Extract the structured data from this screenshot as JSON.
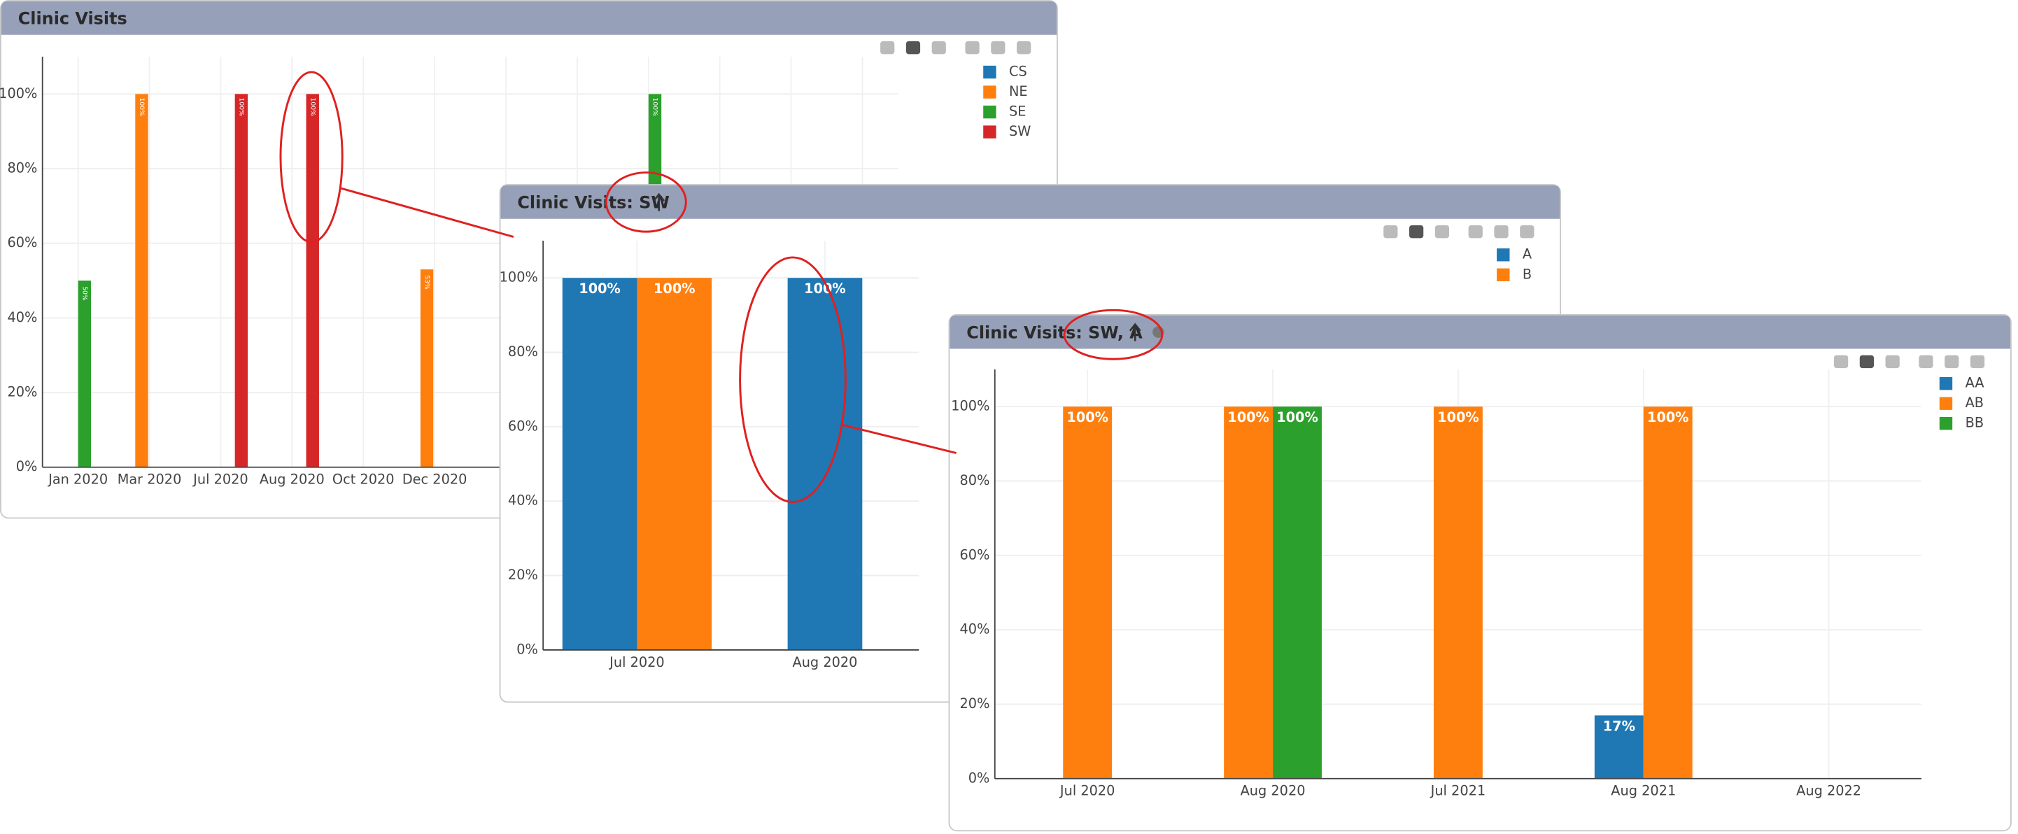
{
  "chart_data": [
    {
      "type": "bar",
      "title": "Clinic Visits",
      "categories": [
        "Jan 2020",
        "Mar 2020",
        "Jul 2020",
        "Aug 2020",
        "Oct 2020",
        "Dec 2020",
        null,
        null,
        null,
        null,
        null,
        null
      ],
      "series": [
        {
          "name": "CS",
          "color": "#1f77b4",
          "values": [
            null,
            null,
            null,
            null,
            null,
            null,
            null,
            null,
            null,
            null,
            null,
            null
          ],
          "value_labels": [
            null,
            null,
            null,
            null,
            null,
            null,
            null,
            null,
            null,
            null,
            null,
            null
          ]
        },
        {
          "name": "NE",
          "color": "#ff7f0e",
          "values": [
            null,
            100,
            null,
            null,
            null,
            53,
            null,
            null,
            null,
            null,
            null,
            null
          ],
          "value_labels": [
            null,
            "100%",
            null,
            null,
            null,
            "53%",
            null,
            null,
            null,
            null,
            null,
            null
          ]
        },
        {
          "name": "SE",
          "color": "#2ca02c",
          "values": [
            50,
            null,
            null,
            null,
            null,
            null,
            null,
            null,
            100,
            null,
            null,
            null
          ],
          "value_labels": [
            "50%",
            null,
            null,
            null,
            null,
            null,
            null,
            null,
            "100%",
            null,
            null,
            null
          ]
        },
        {
          "name": "SW",
          "color": "#d62728",
          "values": [
            null,
            null,
            100,
            100,
            null,
            null,
            null,
            null,
            null,
            null,
            null,
            null
          ],
          "value_labels": [
            null,
            null,
            "100%",
            "100%",
            null,
            null,
            null,
            null,
            null,
            null,
            null,
            null
          ]
        }
      ],
      "ylim": [
        0,
        110
      ],
      "yticks": [
        {
          "value": 0,
          "label": "0%"
        },
        {
          "value": 20,
          "label": "20%"
        },
        {
          "value": 40,
          "label": "40%"
        },
        {
          "value": 60,
          "label": "60%"
        },
        {
          "value": 80,
          "label": "80%"
        },
        {
          "value": 100,
          "label": "100%"
        }
      ],
      "grid": true,
      "legend": "top-right"
    },
    {
      "type": "bar",
      "title": "Clinic Visits: SW",
      "categories": [
        "Jul 2020",
        "Aug 2020"
      ],
      "series": [
        {
          "name": "A",
          "color": "#1f77b4",
          "values": [
            100,
            100
          ],
          "value_labels": [
            "100%",
            "100%"
          ]
        },
        {
          "name": "B",
          "color": "#ff7f0e",
          "values": [
            100,
            null
          ],
          "value_labels": [
            "100%",
            null
          ]
        }
      ],
      "ylim": [
        0,
        110
      ],
      "yticks": [
        {
          "value": 0,
          "label": "0%"
        },
        {
          "value": 20,
          "label": "20%"
        },
        {
          "value": 40,
          "label": "40%"
        },
        {
          "value": 60,
          "label": "60%"
        },
        {
          "value": 80,
          "label": "80%"
        },
        {
          "value": 100,
          "label": "100%"
        }
      ],
      "grid": true,
      "legend": "top-right"
    },
    {
      "type": "bar",
      "title": "Clinic Visits: SW, A",
      "categories": [
        "Jul 2020",
        "Aug 2020",
        "Jul 2021",
        "Aug 2021",
        "Aug 2022"
      ],
      "series": [
        {
          "name": "AA",
          "color": "#1f77b4",
          "values": [
            null,
            null,
            null,
            17,
            null
          ],
          "value_labels": [
            null,
            null,
            null,
            "17%",
            null
          ]
        },
        {
          "name": "AB",
          "color": "#ff7f0e",
          "values": [
            100,
            100,
            100,
            100,
            null
          ],
          "value_labels": [
            "100%",
            "100%",
            "100%",
            "100%",
            null
          ]
        },
        {
          "name": "BB",
          "color": "#2ca02c",
          "values": [
            null,
            100,
            null,
            null,
            null
          ],
          "value_labels": [
            null,
            "100%",
            null,
            null,
            null
          ]
        }
      ],
      "ylim": [
        0,
        110
      ],
      "yticks": [
        {
          "value": 0,
          "label": "0%"
        },
        {
          "value": 20,
          "label": "20%"
        },
        {
          "value": 40,
          "label": "40%"
        },
        {
          "value": 60,
          "label": "60%"
        },
        {
          "value": 80,
          "label": "80%"
        },
        {
          "value": 100,
          "label": "100%"
        }
      ],
      "grid": true,
      "legend": "top-right"
    }
  ]
}
